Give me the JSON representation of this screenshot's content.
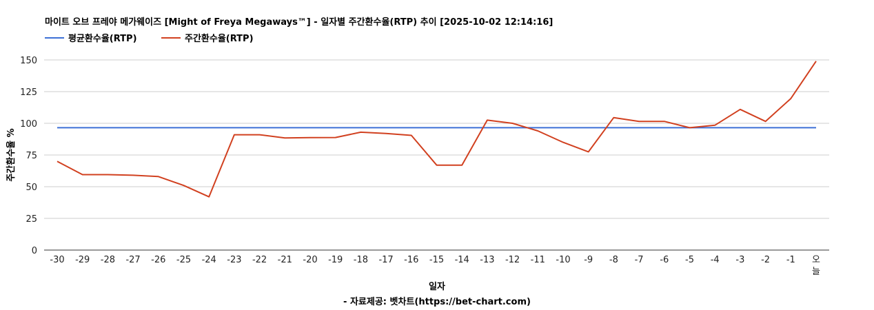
{
  "chart_data": {
    "type": "line",
    "title": "마이트 오브 프레야 메가웨이즈 [Might of Freya Megaways™] - 일자별 주간환수율(RTP) 추이 [2025-10-02 12:14:16]",
    "xlabel": "일자",
    "ylabel": "주간환수율 %",
    "source": "- 자료제공: 벳차트(https://bet-chart.com)",
    "categories": [
      "-30",
      "-29",
      "-28",
      "-27",
      "-26",
      "-25",
      "-24",
      "-23",
      "-22",
      "-21",
      "-20",
      "-19",
      "-18",
      "-17",
      "-16",
      "-15",
      "-14",
      "-13",
      "-12",
      "-11",
      "-10",
      "-9",
      "-8",
      "-7",
      "-6",
      "-5",
      "-4",
      "-3",
      "-2",
      "-1",
      "오늘"
    ],
    "ylim": [
      0,
      150
    ],
    "yticks": [
      0,
      25,
      50,
      75,
      100,
      125,
      150
    ],
    "grid": true,
    "legend_position": "top-left",
    "series": [
      {
        "name": "평균환수율(RTP)",
        "color": "#3c6fd6",
        "values": [
          96.5,
          96.5,
          96.5,
          96.5,
          96.5,
          96.5,
          96.5,
          96.5,
          96.5,
          96.5,
          96.5,
          96.5,
          96.5,
          96.5,
          96.5,
          96.5,
          96.5,
          96.5,
          96.5,
          96.5,
          96.5,
          96.5,
          96.5,
          96.5,
          96.5,
          96.5,
          96.5,
          96.5,
          96.5,
          96.5,
          96.5
        ]
      },
      {
        "name": "주간환수율(RTP)",
        "color": "#d1401f",
        "values": [
          70,
          59.5,
          59.5,
          59,
          58,
          51,
          42,
          91,
          91,
          88.5,
          88.7,
          88.8,
          93,
          92,
          90.5,
          67,
          67,
          102.5,
          100,
          94,
          85,
          77.5,
          104.5,
          101.5,
          101.5,
          96.5,
          98.5,
          111,
          101.5,
          119.5,
          149
        ]
      }
    ]
  }
}
